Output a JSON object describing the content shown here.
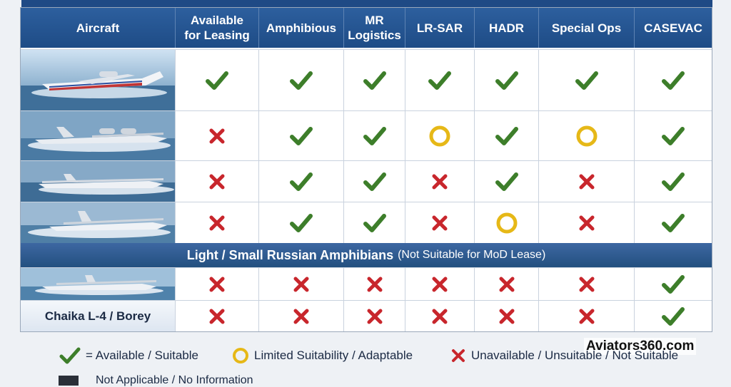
{
  "columns": [
    "Aircraft",
    "Available\nfor Leasing",
    "Amphibious",
    "MR\nLogistics",
    "LR-SAR",
    "HADR",
    "Special Ops",
    "CASEVAC"
  ],
  "rows": [
    {
      "marks": [
        "check",
        "check",
        "check",
        "check",
        "check",
        "check",
        "check"
      ]
    },
    {
      "marks": [
        "cross",
        "check",
        "check",
        "circle",
        "check",
        "circle",
        "check"
      ]
    },
    {
      "marks": [
        "cross",
        "check",
        "check",
        "cross",
        "check",
        "cross",
        "check"
      ]
    },
    {
      "marks": [
        "cross",
        "check",
        "check",
        "cross",
        "circle",
        "cross",
        "check"
      ]
    }
  ],
  "section": {
    "title": "Light / Small Russian Amphibians",
    "note": "(Not Suitable for MoD Lease)"
  },
  "light_rows": [
    {
      "label": "",
      "marks": [
        "cross",
        "cross",
        "cross",
        "cross",
        "cross",
        "cross",
        "check"
      ]
    },
    {
      "label": "Chaika L-4 / Borey",
      "marks": [
        "cross",
        "cross",
        "cross",
        "cross",
        "cross",
        "cross",
        "check"
      ]
    }
  ],
  "legend": {
    "check": "= Available / Suitable",
    "circle": "Limited Suitability / Adaptable",
    "cross": "Unavailable / Unsuitable / Not Suitable",
    "na": "Not Applicable / No Information"
  },
  "watermark": "Aviators360.com",
  "colors": {
    "check": "#3d7e2a",
    "cross": "#c8262c",
    "circle": "#e6b817",
    "header": "#1e4c86"
  }
}
